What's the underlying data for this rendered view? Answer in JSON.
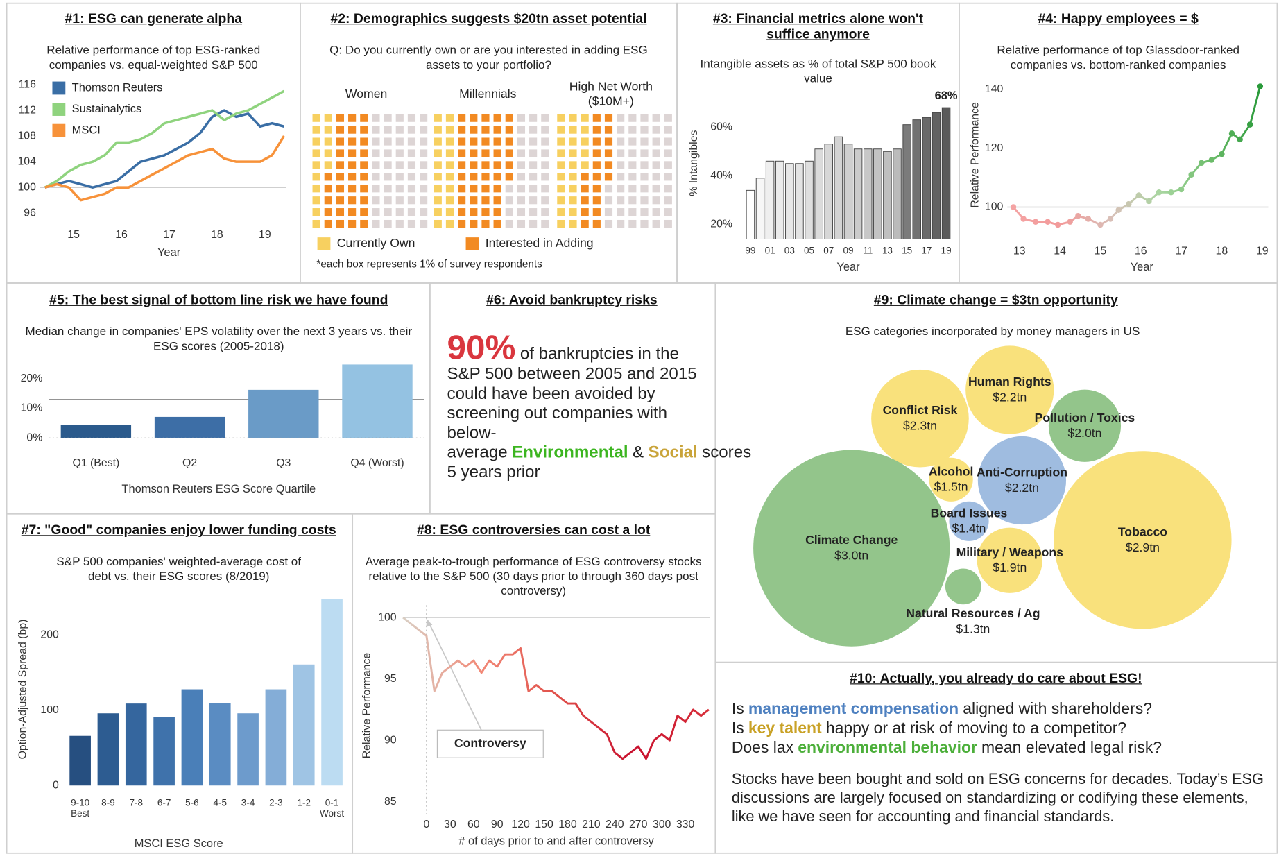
{
  "chart_data": [
    {
      "type": "line",
      "title": "#1: ESG can generate alpha",
      "subtitle": "Relative performance of top ESG-ranked companies vs. equal-weighted S&P 500",
      "xlabel": "Year",
      "x": [
        14.4,
        14.65,
        14.9,
        15.15,
        15.4,
        15.65,
        15.9,
        16.15,
        16.4,
        16.65,
        16.9,
        17.15,
        17.4,
        17.65,
        17.9,
        18.15,
        18.4,
        18.65,
        18.9,
        19.15,
        19.4
      ],
      "xlim": [
        14.3,
        19.45
      ],
      "xticks": [
        15,
        16,
        17,
        18,
        19
      ],
      "ylim": [
        94,
        117
      ],
      "yticks": [
        96,
        100,
        104,
        108,
        112,
        116
      ],
      "reference_line": 100,
      "legend": "upper left",
      "series": [
        {
          "name": "Thomson Reuters",
          "color": "#3a6ea5",
          "values": [
            100,
            100.5,
            101,
            100.5,
            100,
            100.5,
            101,
            102.5,
            104,
            104.5,
            105,
            106,
            107,
            108.5,
            111,
            112,
            111,
            111.5,
            109.5,
            110,
            109.5
          ]
        },
        {
          "name": "Sustainalytics",
          "color": "#8fd37e",
          "values": [
            100,
            101,
            102.5,
            103.5,
            104,
            105,
            107,
            107,
            107.5,
            108.5,
            110,
            110.5,
            111,
            111.5,
            112,
            110.5,
            111.5,
            112,
            113,
            114,
            115
          ]
        },
        {
          "name": "MSCI",
          "color": "#f7923a",
          "values": [
            100,
            100.5,
            100,
            98,
            98.5,
            99,
            100,
            100,
            101,
            102,
            103,
            104,
            105,
            105.5,
            106,
            104.5,
            104,
            104,
            104,
            105,
            108
          ]
        }
      ]
    },
    {
      "type": "waffle",
      "title": "#2: Demographics suggests $20tn asset potential",
      "subtitle": "Q: Do you currently own or are you interested in adding ESG assets to your portfolio?",
      "categories": [
        "Women",
        "Millennials",
        "High Net Worth ($10M+)"
      ],
      "series": [
        {
          "name": "Currently Own",
          "color": "#f7d060",
          "values": [
            15,
            20,
            25
          ]
        },
        {
          "name": "Interested in Adding",
          "color": "#f28a22",
          "values": [
            35,
            46,
            21
          ]
        }
      ],
      "empty_color": "#ddd5d5",
      "note": "*each box represents 1% of survey respondents"
    },
    {
      "type": "bar",
      "title": "#3: Financial metrics alone won't suffice anymore",
      "subtitle": "Intangible assets as % of total S&P 500 book value",
      "xlabel": "Year",
      "ylabel": "% Intangibles",
      "categories": [
        "99",
        null,
        "01",
        null,
        "03",
        null,
        "05",
        null,
        "07",
        null,
        "09",
        null,
        "11",
        null,
        "13",
        null,
        "15",
        null,
        "17",
        null,
        "19"
      ],
      "values": [
        34,
        39,
        46,
        46,
        45,
        45,
        46,
        51,
        53,
        56,
        53,
        51,
        51,
        51,
        50,
        51,
        61,
        63,
        64,
        66,
        68
      ],
      "value_labels": [
        null,
        null,
        null,
        null,
        null,
        null,
        null,
        null,
        null,
        null,
        null,
        null,
        null,
        null,
        null,
        null,
        null,
        null,
        null,
        null,
        "68%"
      ],
      "colors": [
        "#ffffff",
        "#f7f7f7",
        "#efefef",
        "#ebebeb",
        "#e7e7e7",
        "#e3e3e3",
        "#dfdfdf",
        "#dbdbdb",
        "#d7d7d7",
        "#d3d3d3",
        "#cfcfcf",
        "#cbcbcb",
        "#c7c7c7",
        "#c3c3c3",
        "#bfbfbf",
        "#bbbbbb",
        "#7b7b7b",
        "#727272",
        "#6a6a6a",
        "#626262",
        "#5a5a5a"
      ],
      "ylim": [
        14,
        72
      ],
      "yticks": [
        {
          "value": 20,
          "label": "20%"
        },
        {
          "value": 40,
          "label": "40%"
        },
        {
          "value": 60,
          "label": "60%"
        }
      ]
    },
    {
      "type": "line",
      "title": "#4: Happy employees = $",
      "subtitle": "Relative performance of top Glassdoor-ranked companies vs. bottom-ranked companies",
      "xlabel": "Year",
      "ylabel": "Relative Performance",
      "x": [
        12.85,
        13.1,
        13.4,
        13.7,
        13.95,
        14.25,
        14.45,
        14.7,
        15,
        15.25,
        15.45,
        15.7,
        15.95,
        16.2,
        16.45,
        16.75,
        17,
        17.25,
        17.5,
        17.75,
        18,
        18.25,
        18.45,
        18.7,
        18.95
      ],
      "xlim": [
        12.7,
        19.15
      ],
      "xticks": [
        13,
        14,
        15,
        16,
        17,
        18,
        19
      ],
      "ylim": [
        90,
        144
      ],
      "yticks": [
        100,
        120,
        140
      ],
      "reference_line": 100,
      "markers": true,
      "series": [
        {
          "gradient": [
            "#f4a3a3",
            "#f29a9a",
            "#d8c0b8",
            "#a8d6a0",
            "#6cbc6a",
            "#2a9a3a"
          ],
          "values": [
            100,
            96,
            95,
            95,
            94,
            95,
            97,
            96,
            94,
            96,
            99,
            101,
            104,
            102,
            105,
            105,
            106,
            111,
            115,
            116,
            118,
            125,
            123,
            128,
            141
          ]
        }
      ]
    },
    {
      "type": "bar",
      "title": "#5: The best signal of bottom line risk we have found",
      "subtitle": "Median change in companies' EPS volatility over the next 3 years vs. their ESG scores (2005-2018)",
      "xlabel": "Thomson Reuters ESG Score Quartile",
      "categories": [
        "Q1 (Best)",
        "Q2",
        "Q3",
        "Q4 (Worst)"
      ],
      "values": [
        4.4,
        7.1,
        16.2,
        24.7
      ],
      "colors": [
        "#2b5a8c",
        "#3d6ea6",
        "#6a9bc7",
        "#94c2e2"
      ],
      "ylim": [
        0,
        27
      ],
      "yticks": [
        {
          "value": 0,
          "label": "0%"
        },
        {
          "value": 10,
          "label": "10%"
        },
        {
          "value": 20,
          "label": "20%"
        }
      ],
      "reference_line": 12.9
    },
    {
      "type": "bar",
      "title": "#7: \"Good\" companies enjoy lower funding costs",
      "subtitle": "S&P 500 companies' weighted-average cost of debt vs. their ESG scores (8/2019)",
      "xlabel": "MSCI ESG Score",
      "ylabel": "Option-Adjusted Spread (bp)",
      "categories": [
        "9-10",
        "8-9",
        "7-8",
        "6-7",
        "5-6",
        "4-5",
        "3-4",
        "2-3",
        "1-2",
        "0-1"
      ],
      "end_labels": [
        "Best",
        "Worst"
      ],
      "values": [
        66,
        96,
        109,
        91,
        128,
        110,
        96,
        128,
        161,
        248
      ],
      "colors": [
        "#264f80",
        "#2d5c91",
        "#35669e",
        "#3f72ab",
        "#4a7fb8",
        "#5a8cc2",
        "#6d9bcc",
        "#84add7",
        "#9fc4e4",
        "#bcdcf2"
      ],
      "ylim": [
        0,
        255
      ],
      "yticks": [
        0,
        100,
        200
      ]
    },
    {
      "type": "line",
      "title": "#8: ESG controversies can cost a lot",
      "subtitle": "Average peak-to-trough performance of ESG controversy stocks relative to the S&P 500 (30 days prior to through 360 days post controversy)",
      "xlabel": "# of days prior to and after controversy",
      "ylabel": "Relative Performance",
      "annotation": "Controversy",
      "x": [
        -30,
        -20,
        -10,
        0,
        10,
        20,
        30,
        40,
        50,
        60,
        70,
        80,
        90,
        100,
        110,
        120,
        130,
        140,
        150,
        160,
        170,
        180,
        190,
        200,
        210,
        220,
        230,
        240,
        250,
        260,
        270,
        280,
        290,
        300,
        310,
        320,
        330,
        340,
        350,
        360
      ],
      "xlim": [
        -30,
        361
      ],
      "xticks": [
        0,
        30,
        60,
        90,
        120,
        150,
        180,
        210,
        240,
        270,
        300,
        330
      ],
      "ylim": [
        84,
        101
      ],
      "yticks": [
        85,
        90,
        95,
        100
      ],
      "reference_line": 100,
      "reference_x": 0,
      "series": [
        {
          "gradient": [
            "#d9cfc4",
            "#f28a78",
            "#e0504a",
            "#c8102e",
            "#d8303a"
          ],
          "values": [
            100,
            99.5,
            99,
            98.5,
            94,
            95.5,
            96,
            96.5,
            96,
            96.5,
            95.5,
            96.5,
            96,
            97,
            97,
            97.5,
            94,
            94.5,
            94,
            94,
            93.5,
            93,
            93,
            92,
            91.5,
            91,
            90.5,
            89,
            88.5,
            89,
            89.5,
            88.5,
            90,
            90.5,
            90,
            92,
            91.5,
            92.5,
            92,
            92.5
          ]
        }
      ]
    },
    {
      "type": "bubble",
      "title": "#9: Climate change = $3tn opportunity",
      "subtitle": "ESG categories incorporated by money managers in US",
      "categories": [
        "Human Rights",
        "Conflict Risk",
        "Pollution / Toxics",
        "Alcohol",
        "Anti-Corruption",
        "Board Issues",
        "Military / Weapons",
        "Climate Change",
        "Tobacco",
        "Natural Resources / Ag"
      ],
      "values": [
        2.2,
        2.3,
        2.0,
        1.5,
        2.2,
        1.4,
        1.9,
        3.0,
        2.9,
        1.3
      ],
      "value_labels": [
        "$2.2tn",
        "$2.3tn",
        "$2.0tn",
        "$1.5tn",
        "$2.2tn",
        "$1.4tn",
        "$1.9tn",
        "$3.0tn",
        "$2.9tn",
        "$1.3tn"
      ],
      "colors": [
        "#f9e17c",
        "#f9e17c",
        "#93c58b",
        "#f9e17c",
        "#9fbce0",
        "#9fbce0",
        "#f9e17c",
        "#93c58b",
        "#f9e17c",
        "#93c58b"
      ]
    }
  ],
  "text_panels": [
    {
      "title": "#6: Avoid bankruptcy risks",
      "stat": "90%",
      "stat_color": "#d9363e",
      "text": "of bankruptcies in the S&P 500 between 2005 and 2015 could have been avoided by screening out companies with below-average",
      "highlights": [
        {
          "text": "Environmental",
          "color": "#3cb520"
        },
        {
          "text": "Social",
          "color": "#c9a43a"
        }
      ],
      "connector": "&",
      "ending": "scores 5 years prior"
    },
    {
      "title": "#10: Actually, you already do care about ESG!",
      "questions": [
        {
          "start": "Is",
          "highlight": "management compensation",
          "end": "aligned with shareholders?",
          "color": "#4f81c0"
        },
        {
          "start": "Is",
          "highlight": "key talent",
          "end": "happy or at risk of moving to a competitor?",
          "color": "#c9a227"
        },
        {
          "start": "Does lax",
          "highlight": "environmental behavior",
          "end": "mean elevated legal risk?",
          "color": "#4caf3a"
        }
      ],
      "paragraph": "Stocks have been bought and sold on ESG concerns for decades. Today’s ESG discussions are largely focused on standardizing or codifying these elements, like we have seen for accounting and financial standards."
    }
  ]
}
